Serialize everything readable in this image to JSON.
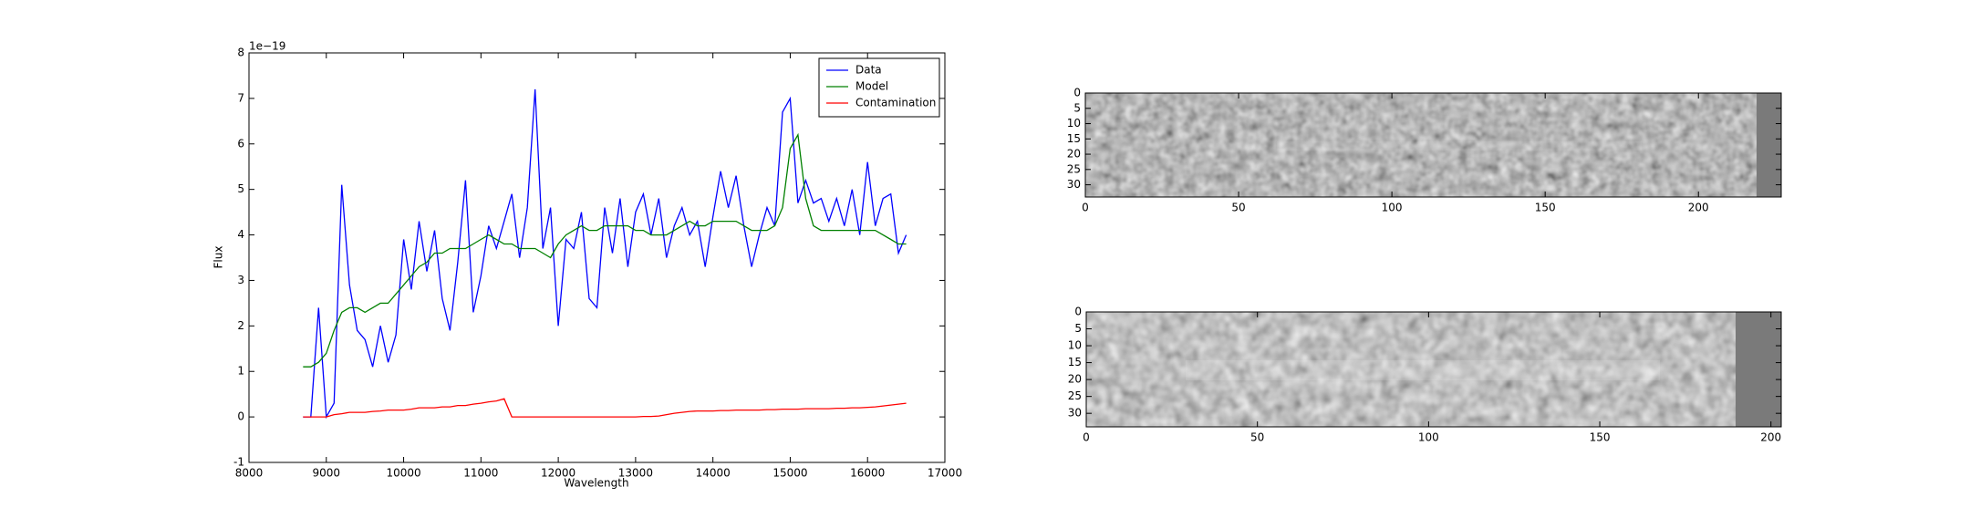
{
  "chart_data": [
    {
      "type": "line",
      "offset_text": "1e−19",
      "xlabel": "Wavelength",
      "ylabel": "Flux",
      "xlim": [
        8000,
        17000
      ],
      "xticks": [
        8000,
        9000,
        10000,
        11000,
        12000,
        13000,
        14000,
        15000,
        16000,
        17000
      ],
      "ylim": [
        -1,
        8
      ],
      "yticks": [
        -1,
        0,
        1,
        2,
        3,
        4,
        5,
        6,
        7,
        8
      ],
      "legend": "upper right",
      "x": [
        8700,
        8800,
        8900,
        9000,
        9100,
        9200,
        9300,
        9400,
        9500,
        9600,
        9700,
        9800,
        9900,
        10000,
        10100,
        10200,
        10300,
        10400,
        10500,
        10600,
        10700,
        10800,
        10900,
        11000,
        11100,
        11200,
        11300,
        11400,
        11500,
        11600,
        11700,
        11800,
        11900,
        12000,
        12100,
        12200,
        12300,
        12400,
        12500,
        12600,
        12700,
        12800,
        12900,
        13000,
        13100,
        13200,
        13300,
        13400,
        13500,
        13600,
        13700,
        13800,
        13900,
        14000,
        14100,
        14200,
        14300,
        14400,
        14500,
        14600,
        14700,
        14800,
        14900,
        15000,
        15100,
        15200,
        15300,
        15400,
        15500,
        15600,
        15700,
        15800,
        15900,
        16000,
        16100,
        16200,
        16300,
        16400,
        16500
      ],
      "series": [
        {
          "name": "Data",
          "color": "#0000ff",
          "values": [
            0.0,
            0.0,
            2.4,
            0.0,
            0.3,
            5.1,
            2.9,
            1.9,
            1.7,
            1.1,
            2.0,
            1.2,
            1.8,
            3.9,
            2.8,
            4.3,
            3.2,
            4.1,
            2.6,
            1.9,
            3.4,
            5.2,
            2.3,
            3.1,
            4.2,
            3.7,
            4.3,
            4.9,
            3.5,
            4.6,
            7.2,
            3.7,
            4.6,
            2.0,
            3.9,
            3.7,
            4.5,
            2.6,
            2.4,
            4.6,
            3.6,
            4.8,
            3.3,
            4.5,
            4.9,
            4.0,
            4.8,
            3.5,
            4.2,
            4.6,
            4.0,
            4.3,
            3.3,
            4.4,
            5.4,
            4.6,
            5.3,
            4.2,
            3.3,
            4.0,
            4.6,
            4.2,
            6.7,
            7.0,
            4.7,
            5.2,
            4.7,
            4.8,
            4.3,
            4.8,
            4.2,
            5.0,
            4.0,
            5.6,
            4.2,
            4.8,
            4.9,
            3.6,
            4.0
          ]
        },
        {
          "name": "Model",
          "color": "#008000",
          "values": [
            1.1,
            1.1,
            1.2,
            1.4,
            1.9,
            2.3,
            2.4,
            2.4,
            2.3,
            2.4,
            2.5,
            2.5,
            2.7,
            2.9,
            3.1,
            3.3,
            3.4,
            3.6,
            3.6,
            3.7,
            3.7,
            3.7,
            3.8,
            3.9,
            4.0,
            3.9,
            3.8,
            3.8,
            3.7,
            3.7,
            3.7,
            3.6,
            3.5,
            3.8,
            4.0,
            4.1,
            4.2,
            4.1,
            4.1,
            4.2,
            4.2,
            4.2,
            4.2,
            4.1,
            4.1,
            4.0,
            4.0,
            4.0,
            4.1,
            4.2,
            4.3,
            4.2,
            4.2,
            4.3,
            4.3,
            4.3,
            4.3,
            4.2,
            4.1,
            4.1,
            4.1,
            4.2,
            4.6,
            5.9,
            6.2,
            4.8,
            4.2,
            4.1,
            4.1,
            4.1,
            4.1,
            4.1,
            4.1,
            4.1,
            4.1,
            4.0,
            3.9,
            3.8,
            3.8
          ]
        },
        {
          "name": "Contamination",
          "color": "#ff0000",
          "values": [
            0,
            0,
            0,
            0,
            0.05,
            0.07,
            0.1,
            0.1,
            0.1,
            0.12,
            0.13,
            0.15,
            0.15,
            0.15,
            0.17,
            0.2,
            0.2,
            0.2,
            0.22,
            0.22,
            0.25,
            0.25,
            0.28,
            0.3,
            0.33,
            0.35,
            0.4,
            0,
            0,
            0,
            0,
            0,
            0,
            0,
            0,
            0,
            0,
            0,
            0,
            0,
            0,
            0,
            0,
            0,
            0.01,
            0.01,
            0.02,
            0.05,
            0.08,
            0.1,
            0.12,
            0.13,
            0.13,
            0.13,
            0.14,
            0.14,
            0.15,
            0.15,
            0.15,
            0.15,
            0.16,
            0.16,
            0.17,
            0.17,
            0.17,
            0.18,
            0.18,
            0.18,
            0.18,
            0.19,
            0.19,
            0.2,
            0.2,
            0.21,
            0.22,
            0.24,
            0.26,
            0.28,
            0.3
          ]
        }
      ]
    },
    {
      "type": "image",
      "xlim": [
        0,
        227
      ],
      "xticks": [
        0,
        50,
        100,
        150,
        200
      ],
      "ylim": [
        34,
        0
      ],
      "yticks": [
        0,
        5,
        10,
        15,
        20,
        25,
        30
      ]
    },
    {
      "type": "image",
      "xlim": [
        0,
        203
      ],
      "xticks": [
        0,
        50,
        100,
        150,
        200
      ],
      "ylim": [
        34,
        0
      ],
      "yticks": [
        0,
        5,
        10,
        15,
        20,
        25,
        30
      ]
    }
  ]
}
